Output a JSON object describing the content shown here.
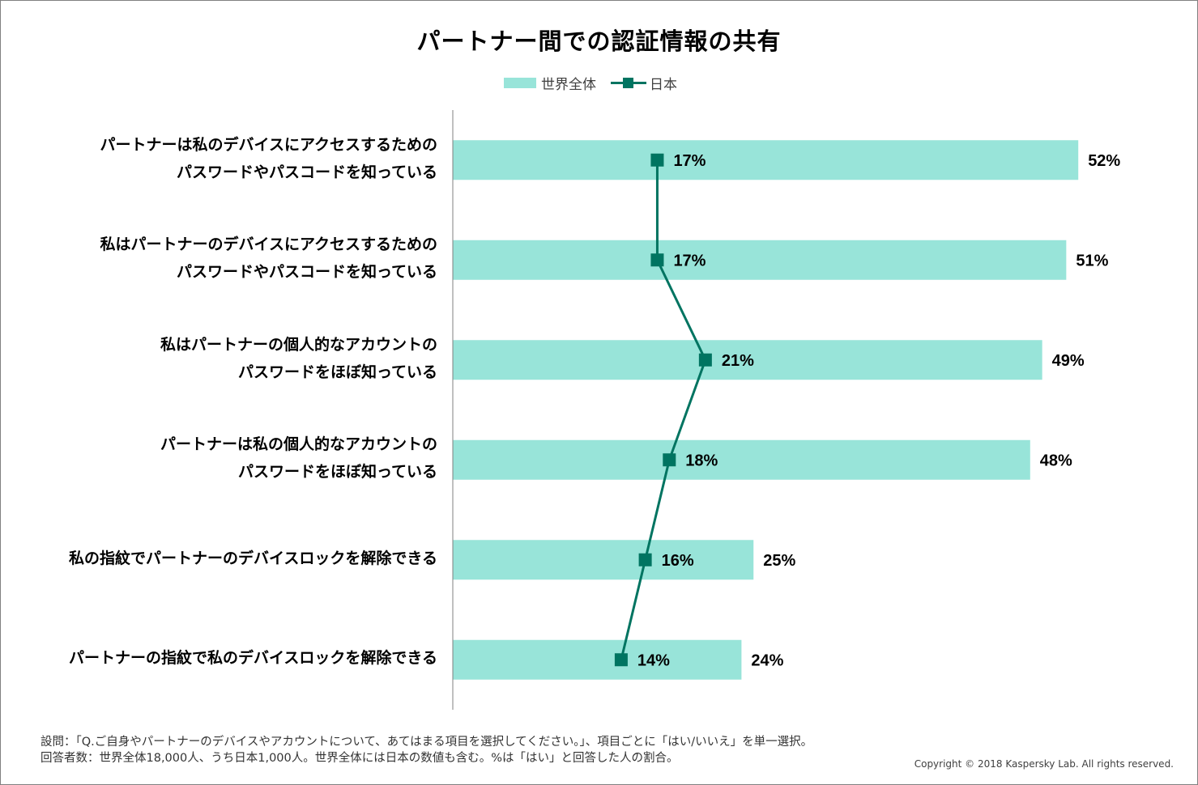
{
  "title": "パートナー間での認証情報の共有",
  "colors": {
    "world": "#98e4d9",
    "japan": "#007461"
  },
  "chart_data": {
    "type": "bar",
    "orientation": "horizontal",
    "categories": [
      [
        "パートナーは私のデバイスにアクセスするための",
        "パスワードやパスコードを知っている"
      ],
      [
        "私はパートナーのデバイスにアクセスするための",
        "パスワードやパスコードを知っている"
      ],
      [
        "私はパートナーの個人的なアカウントの",
        "パスワードをほぼ知っている"
      ],
      [
        "パートナーは私の個人的なアカウントの",
        "パスワードをほぼ知っている"
      ],
      [
        "私の指紋でパートナーのデバイスロックを解除できる"
      ],
      [
        "パートナーの指紋で私のデバイスロックを解除できる"
      ]
    ],
    "series": [
      {
        "name": "世界全体",
        "type": "bar",
        "values": [
          52,
          51,
          49,
          48,
          25,
          24
        ],
        "labels": [
          "52%",
          "51%",
          "49%",
          "48%",
          "25%",
          "24%"
        ]
      },
      {
        "name": "日本",
        "type": "line",
        "values": [
          17,
          17,
          21,
          18,
          16,
          14
        ],
        "labels": [
          "17%",
          "17%",
          "21%",
          "18%",
          "16%",
          "14%"
        ]
      }
    ],
    "xlim": [
      0,
      60
    ],
    "legend_position": "top-center",
    "grid": false
  },
  "notes": {
    "line1": "設問：「Q.ご自身やパートナーのデバイスやアカウントについて、あてはまる項目を選択してください。」、項目ごとに「はい/いいえ」を単一選択。",
    "line2": "回答者数：世界全体18,000人、うち日本1,000人。世界全体には日本の数値も含む。%は「はい」と回答した人の割合。"
  },
  "copyright": "Copyright © 2018 Kaspersky Lab. All rights reserved."
}
